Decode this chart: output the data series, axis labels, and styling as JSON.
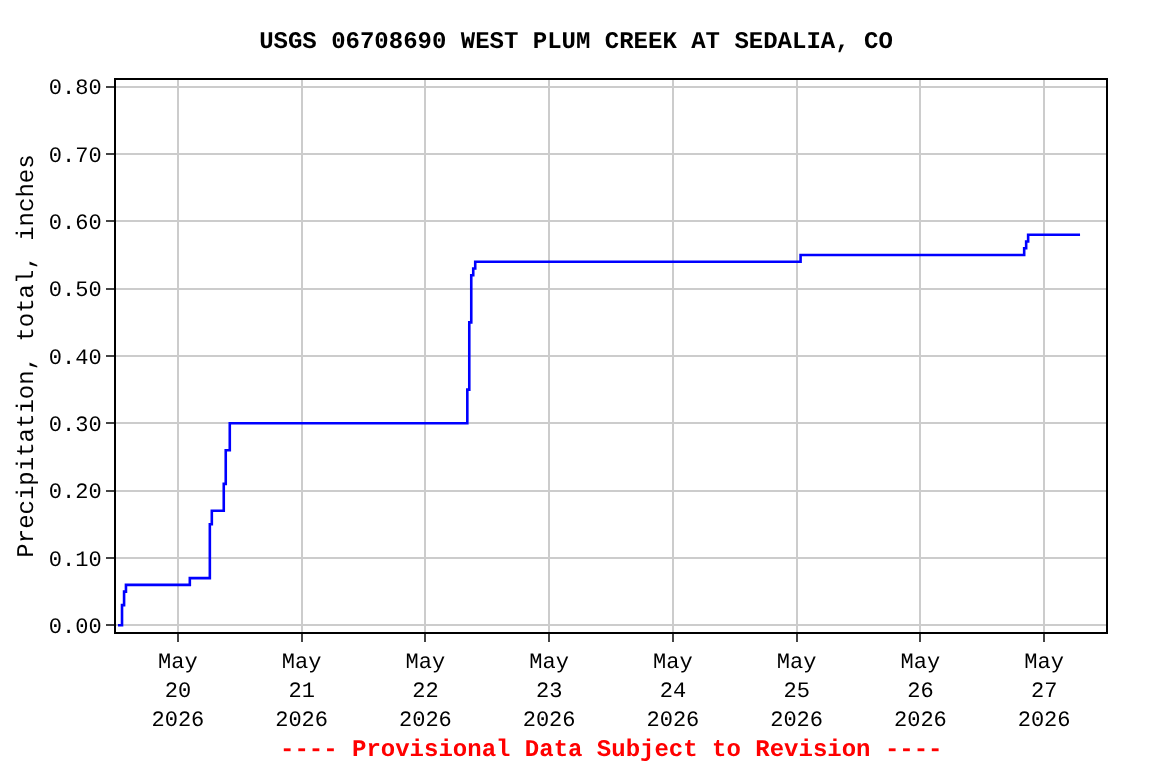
{
  "chart_data": {
    "type": "step",
    "title": "USGS 06708690 WEST PLUM CREEK AT SEDALIA, CO",
    "ylabel": "Precipitation, total, inches",
    "annotations": [
      "---- Provisional Data Subject to Revision ----"
    ],
    "series": [
      {
        "color": "#0000ff",
        "x": [
          "2026-05-19T12:23",
          "2026-05-19T13:10",
          "2026-05-19T13:34",
          "2026-05-19T13:56",
          "2026-05-20T02:19",
          "2026-05-20T06:12",
          "2026-05-20T06:35",
          "2026-05-20T08:54",
          "2026-05-20T09:17",
          "2026-05-20T10:04",
          "2026-05-22T08:08",
          "2026-05-22T08:31",
          "2026-05-22T08:54",
          "2026-05-22T09:17",
          "2026-05-22T09:40",
          "2026-05-25T00:46",
          "2026-05-26T20:08",
          "2026-05-26T20:31",
          "2026-05-26T20:54",
          "2026-05-27T06:58"
        ],
        "values": [
          0.0,
          0.03,
          0.05,
          0.06,
          0.07,
          0.15,
          0.17,
          0.21,
          0.26,
          0.3,
          0.35,
          0.45,
          0.52,
          0.53,
          0.54,
          0.55,
          0.56,
          0.57,
          0.58,
          0.58
        ]
      }
    ],
    "xlim": [
      "2026-05-19T12:00",
      "2026-05-27T12:00"
    ],
    "xticks": [
      {
        "value": "2026-05-20",
        "label": "May\n20\n2026"
      },
      {
        "value": "2026-05-21",
        "label": "May\n21\n2026"
      },
      {
        "value": "2026-05-22",
        "label": "May\n22\n2026"
      },
      {
        "value": "2026-05-23",
        "label": "May\n23\n2026"
      },
      {
        "value": "2026-05-24",
        "label": "May\n24\n2026"
      },
      {
        "value": "2026-05-25",
        "label": "May\n25\n2026"
      },
      {
        "value": "2026-05-26",
        "label": "May\n26\n2026"
      },
      {
        "value": "2026-05-27",
        "label": "May\n27\n2026"
      }
    ],
    "ylim": [
      -0.01,
      0.81
    ],
    "yticks": [
      {
        "value": 0,
        "label": "0.00"
      },
      {
        "value": 0.1,
        "label": "0.10"
      },
      {
        "value": 0.2,
        "label": "0.20"
      },
      {
        "value": 0.3,
        "label": "0.30"
      },
      {
        "value": 0.4,
        "label": "0.40"
      },
      {
        "value": 0.5,
        "label": "0.50"
      },
      {
        "value": 0.6,
        "label": "0.60"
      },
      {
        "value": 0.7,
        "label": "0.70"
      },
      {
        "value": 0.8,
        "label": "0.80"
      }
    ],
    "grid": true
  }
}
